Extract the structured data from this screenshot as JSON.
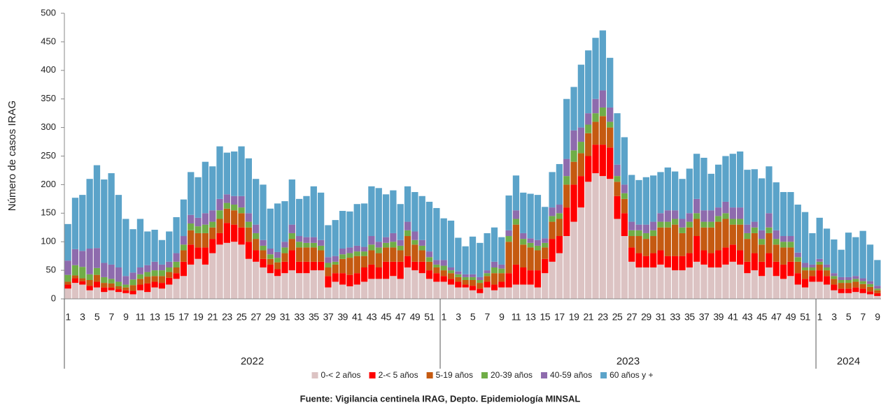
{
  "chart_data": {
    "type": "stacked_bar",
    "y_label": "Número de casos IRAG",
    "source": "Fuente: Vigilancia centinela IRAG, Depto. Epidemiología MINSAL",
    "year_labels": [
      "2022",
      "2023",
      "2024"
    ],
    "categories": [
      "1",
      null,
      "3",
      null,
      "5",
      null,
      "7",
      null,
      "9",
      null,
      "11",
      null,
      "13",
      null,
      "15",
      null,
      "17",
      null,
      "19",
      null,
      "21",
      null,
      "23",
      null,
      "25",
      null,
      "27",
      null,
      "29",
      null,
      "31",
      null,
      "33",
      null,
      "35",
      null,
      "37",
      null,
      "39",
      null,
      "41",
      null,
      "43",
      null,
      "45",
      null,
      "47",
      null,
      "49",
      null,
      "51",
      null,
      "1",
      null,
      "3",
      null,
      "5",
      null,
      "7",
      null,
      "9",
      null,
      "11",
      null,
      "13",
      null,
      "15",
      null,
      "17",
      null,
      "19",
      null,
      "21",
      null,
      "23",
      null,
      "25",
      null,
      "27",
      null,
      "29",
      null,
      "31",
      null,
      "33",
      null,
      "35",
      null,
      "37",
      null,
      "39",
      null,
      "41",
      null,
      "43",
      null,
      "45",
      null,
      "47",
      null,
      "49",
      null,
      "51",
      null,
      "1",
      null,
      "3",
      null,
      "5",
      null,
      "7",
      null,
      "9"
    ],
    "series": [
      {
        "name": "0-< 2 años",
        "color": "#dcc3c3",
        "values": [
          18,
          28,
          25,
          15,
          20,
          12,
          15,
          12,
          10,
          8,
          15,
          12,
          20,
          18,
          25,
          35,
          40,
          60,
          70,
          60,
          80,
          95,
          98,
          100,
          95,
          70,
          65,
          55,
          45,
          40,
          45,
          50,
          45,
          45,
          50,
          50,
          20,
          30,
          25,
          22,
          25,
          30,
          35,
          35,
          35,
          40,
          35,
          55,
          50,
          45,
          35,
          30,
          30,
          25,
          20,
          20,
          15,
          10,
          20,
          15,
          20,
          20,
          25,
          25,
          25,
          20,
          45,
          65,
          80,
          110,
          135,
          160,
          205,
          220,
          215,
          210,
          140,
          110,
          65,
          55,
          55,
          55,
          60,
          55,
          50,
          50,
          55,
          65,
          60,
          55,
          55,
          60,
          65,
          60,
          45,
          50,
          40,
          55,
          40,
          35,
          40,
          25,
          20,
          30,
          30,
          25,
          15,
          10,
          10,
          12,
          10,
          8,
          5
        ]
      },
      {
        "name": "2-< 5 años",
        "color": "#ff0000",
        "values": [
          7,
          8,
          6,
          8,
          10,
          8,
          5,
          5,
          5,
          6,
          10,
          15,
          10,
          10,
          12,
          10,
          25,
          35,
          20,
          30,
          25,
          20,
          35,
          30,
          30,
          30,
          20,
          15,
          15,
          12,
          20,
          35,
          20,
          20,
          15,
          15,
          20,
          15,
          20,
          20,
          20,
          25,
          25,
          20,
          30,
          25,
          30,
          20,
          15,
          20,
          15,
          15,
          10,
          10,
          10,
          5,
          8,
          8,
          10,
          10,
          10,
          25,
          35,
          30,
          25,
          30,
          25,
          40,
          30,
          50,
          65,
          55,
          45,
          50,
          55,
          55,
          40,
          40,
          25,
          25,
          20,
          25,
          25,
          20,
          25,
          25,
          25,
          45,
          25,
          25,
          30,
          30,
          30,
          25,
          20,
          30,
          25,
          25,
          25,
          25,
          25,
          20,
          15,
          10,
          20,
          15,
          10,
          8,
          8,
          8,
          8,
          5,
          5
        ]
      },
      {
        "name": "5-19 años",
        "color": "#c55a11",
        "values": [
          5,
          5,
          5,
          10,
          12,
          8,
          7,
          5,
          5,
          10,
          10,
          12,
          10,
          12,
          10,
          10,
          20,
          25,
          25,
          25,
          20,
          25,
          25,
          25,
          25,
          25,
          20,
          15,
          10,
          12,
          15,
          20,
          25,
          25,
          25,
          20,
          15,
          15,
          25,
          30,
          30,
          20,
          25,
          25,
          25,
          25,
          20,
          35,
          30,
          20,
          15,
          10,
          10,
          10,
          8,
          8,
          10,
          10,
          10,
          20,
          15,
          55,
          70,
          40,
          40,
          35,
          20,
          30,
          30,
          40,
          40,
          40,
          40,
          40,
          50,
          35,
          25,
          25,
          20,
          30,
          30,
          30,
          40,
          50,
          55,
          40,
          45,
          30,
          40,
          45,
          50,
          50,
          35,
          45,
          40,
          35,
          30,
          35,
          30,
          30,
          25,
          20,
          15,
          10,
          10,
          10,
          10,
          10,
          10,
          10,
          8,
          8,
          5
        ]
      },
      {
        "name": "20-39 años",
        "color": "#70ad47",
        "values": [
          12,
          18,
          20,
          10,
          12,
          10,
          8,
          8,
          5,
          10,
          8,
          8,
          10,
          10,
          8,
          10,
          10,
          12,
          12,
          15,
          10,
          15,
          10,
          10,
          10,
          10,
          10,
          8,
          8,
          8,
          10,
          10,
          10,
          8,
          8,
          8,
          8,
          5,
          8,
          8,
          8,
          8,
          10,
          10,
          8,
          10,
          8,
          10,
          8,
          8,
          8,
          5,
          8,
          5,
          5,
          5,
          5,
          5,
          5,
          10,
          8,
          10,
          10,
          10,
          8,
          8,
          8,
          10,
          10,
          15,
          20,
          20,
          15,
          15,
          15,
          10,
          10,
          10,
          10,
          10,
          10,
          10,
          10,
          10,
          10,
          10,
          10,
          10,
          10,
          10,
          10,
          10,
          10,
          10,
          10,
          10,
          10,
          10,
          10,
          10,
          10,
          8,
          5,
          5,
          5,
          5,
          5,
          5,
          5,
          5,
          5,
          5,
          3
        ]
      },
      {
        "name": "40-59 años",
        "color": "#8e6bad",
        "values": [
          25,
          28,
          28,
          45,
          35,
          25,
          25,
          25,
          15,
          12,
          12,
          12,
          15,
          10,
          10,
          15,
          15,
          15,
          15,
          20,
          20,
          20,
          15,
          15,
          20,
          15,
          15,
          10,
          10,
          10,
          10,
          15,
          10,
          10,
          10,
          10,
          10,
          10,
          10,
          10,
          10,
          8,
          15,
          10,
          10,
          15,
          10,
          15,
          15,
          10,
          10,
          8,
          10,
          5,
          5,
          5,
          5,
          5,
          5,
          10,
          7,
          10,
          15,
          10,
          8,
          10,
          8,
          15,
          15,
          30,
          35,
          25,
          20,
          25,
          30,
          25,
          20,
          15,
          15,
          10,
          15,
          15,
          15,
          20,
          15,
          15,
          15,
          25,
          20,
          20,
          15,
          20,
          20,
          20,
          15,
          10,
          15,
          25,
          15,
          10,
          10,
          8,
          8,
          5,
          5,
          5,
          5,
          5,
          5,
          5,
          5,
          5,
          5
        ]
      },
      {
        "name": "60 años y +",
        "color": "#5ba3c9",
        "values": [
          64,
          90,
          98,
          122,
          145,
          146,
          160,
          127,
          100,
          76,
          85,
          59,
          56,
          43,
          53,
          63,
          64,
          75,
          71,
          90,
          77,
          92,
          73,
          78,
          87,
          96,
          80,
          97,
          70,
          85,
          71,
          79,
          65,
          72,
          89,
          83,
          56,
          63,
          66,
          63,
          73,
          76,
          87,
          94,
          75,
          75,
          63,
          62,
          69,
          77,
          87,
          91,
          73,
          82,
          59,
          49,
          66,
          60,
          65,
          60,
          48,
          61,
          61,
          71,
          78,
          79,
          55,
          62,
          71,
          105,
          76,
          110,
          110,
          107,
          105,
          87,
          90,
          83,
          82,
          78,
          83,
          81,
          72,
          75,
          68,
          70,
          78,
          79,
          92,
          64,
          75,
          80,
          94,
          98,
          96,
          92,
          91,
          82,
          84,
          77,
          77,
          84,
          89,
          55,
          72,
          63,
          59,
          48,
          78,
          68,
          83,
          64,
          45
        ]
      }
    ],
    "ylim": [
      0,
      500
    ],
    "yticks": [
      0,
      50,
      100,
      150,
      200,
      250,
      300,
      350,
      400,
      450,
      500
    ]
  }
}
